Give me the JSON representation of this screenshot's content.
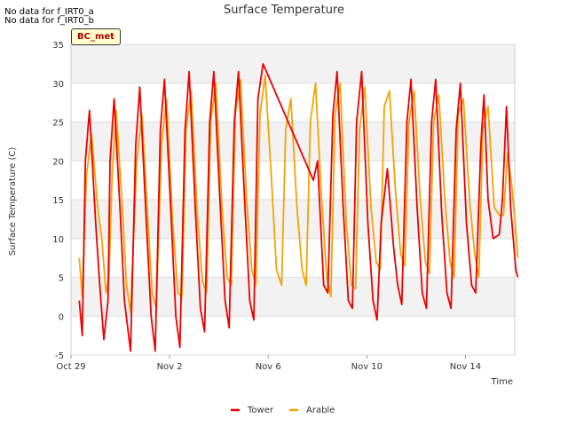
{
  "notes": [
    "No data for f_IRT0_a",
    "No data for f_IRT0_b"
  ],
  "badge": "BC_met",
  "chart_data": {
    "type": "line",
    "title": "Surface Temperature",
    "xlabel": "Time",
    "ylabel": "Surface Temperature (C)",
    "ylim": [
      -5,
      35
    ],
    "xlim": [
      "2023-10-29",
      "2023-11-16"
    ],
    "yticks": [
      -5,
      0,
      5,
      10,
      15,
      20,
      25,
      30,
      35
    ],
    "xticks": [
      {
        "label": "Oct 29",
        "date": "2023-10-29"
      },
      {
        "label": "Nov 2",
        "date": "2023-11-02"
      },
      {
        "label": "Nov 6",
        "date": "2023-11-06"
      },
      {
        "label": "Nov 10",
        "date": "2023-11-10"
      },
      {
        "label": "Nov 14",
        "date": "2023-11-14"
      }
    ],
    "grid": true,
    "legend_position": "bottom",
    "series": [
      {
        "name": "Tower",
        "color": "#ee0000",
        "points": [
          [
            "2023-10-29 08:00",
            2.0
          ],
          [
            "2023-10-29 11:00",
            -2.5
          ],
          [
            "2023-10-29 14:00",
            20.0
          ],
          [
            "2023-10-29 18:00",
            26.5
          ],
          [
            "2023-10-30 00:00",
            12.0
          ],
          [
            "2023-10-30 04:00",
            4.0
          ],
          [
            "2023-10-30 08:00",
            -3.0
          ],
          [
            "2023-10-30 12:00",
            2.0
          ],
          [
            "2023-10-30 14:00",
            20.0
          ],
          [
            "2023-10-30 18:00",
            28.0
          ],
          [
            "2023-10-31 00:00",
            13.0
          ],
          [
            "2023-10-31 04:00",
            2.0
          ],
          [
            "2023-10-31 10:00",
            -4.5
          ],
          [
            "2023-10-31 15:00",
            22.0
          ],
          [
            "2023-10-31 19:00",
            29.5
          ],
          [
            "2023-11-01 01:00",
            13.0
          ],
          [
            "2023-11-01 06:00",
            0.0
          ],
          [
            "2023-11-01 10:00",
            -4.5
          ],
          [
            "2023-11-01 15:00",
            24.0
          ],
          [
            "2023-11-01 19:00",
            30.5
          ],
          [
            "2023-11-02 01:00",
            14.0
          ],
          [
            "2023-11-02 06:00",
            0.0
          ],
          [
            "2023-11-02 10:00",
            -4.0
          ],
          [
            "2023-11-02 15:00",
            24.0
          ],
          [
            "2023-11-02 19:00",
            31.5
          ],
          [
            "2023-11-03 01:00",
            14.0
          ],
          [
            "2023-11-03 06:00",
            1.0
          ],
          [
            "2023-11-03 10:00",
            -2.0
          ],
          [
            "2023-11-03 15:00",
            25.0
          ],
          [
            "2023-11-03 19:00",
            31.5
          ],
          [
            "2023-11-04 01:00",
            15.0
          ],
          [
            "2023-11-04 06:00",
            2.0
          ],
          [
            "2023-11-04 10:00",
            -1.5
          ],
          [
            "2023-11-04 15:00",
            25.0
          ],
          [
            "2023-11-04 19:00",
            31.5
          ],
          [
            "2023-11-05 01:00",
            15.0
          ],
          [
            "2023-11-05 06:00",
            2.0
          ],
          [
            "2023-11-05 10:00",
            -0.5
          ],
          [
            "2023-11-05 14:00",
            28.0
          ],
          [
            "2023-11-05 19:00",
            32.5
          ],
          [
            "2023-11-07 20:00",
            17.5
          ],
          [
            "2023-11-08 00:00",
            20.0
          ],
          [
            "2023-11-08 06:00",
            4.0
          ],
          [
            "2023-11-08 10:00",
            3.0
          ],
          [
            "2023-11-08 15:00",
            26.0
          ],
          [
            "2023-11-08 19:00",
            31.5
          ],
          [
            "2023-11-09 01:00",
            14.0
          ],
          [
            "2023-11-09 06:00",
            2.0
          ],
          [
            "2023-11-09 10:00",
            1.0
          ],
          [
            "2023-11-09 14:00",
            25.0
          ],
          [
            "2023-11-09 19:00",
            31.5
          ],
          [
            "2023-11-10 01:00",
            12.0
          ],
          [
            "2023-11-10 06:00",
            2.0
          ],
          [
            "2023-11-10 10:00",
            -0.5
          ],
          [
            "2023-11-10 14:00",
            12.0
          ],
          [
            "2023-11-10 20:00",
            19.0
          ],
          [
            "2023-11-11 02:00",
            9.0
          ],
          [
            "2023-11-11 06:00",
            4.0
          ],
          [
            "2023-11-11 10:00",
            1.5
          ],
          [
            "2023-11-11 15:00",
            25.0
          ],
          [
            "2023-11-11 19:00",
            30.5
          ],
          [
            "2023-11-12 01:00",
            14.0
          ],
          [
            "2023-11-12 06:00",
            3.0
          ],
          [
            "2023-11-12 10:00",
            1.0
          ],
          [
            "2023-11-12 15:00",
            25.0
          ],
          [
            "2023-11-12 19:00",
            30.5
          ],
          [
            "2023-11-13 01:00",
            13.0
          ],
          [
            "2023-11-13 06:00",
            3.0
          ],
          [
            "2023-11-13 10:00",
            1.0
          ],
          [
            "2023-11-13 15:00",
            24.0
          ],
          [
            "2023-11-13 19:00",
            30.0
          ],
          [
            "2023-11-14 01:00",
            12.0
          ],
          [
            "2023-11-14 06:00",
            4.0
          ],
          [
            "2023-11-14 10:00",
            3.0
          ],
          [
            "2023-11-14 15:00",
            22.0
          ],
          [
            "2023-11-14 18:00",
            28.5
          ],
          [
            "2023-11-14 22:00",
            15.0
          ],
          [
            "2023-11-15 03:00",
            10.0
          ],
          [
            "2023-11-15 09:00",
            10.5
          ],
          [
            "2023-11-15 12:00",
            15.0
          ],
          [
            "2023-11-15 16:00",
            27.0
          ],
          [
            "2023-11-15 20:00",
            14.0
          ],
          [
            "2023-11-16 01:00",
            6.0
          ],
          [
            "2023-11-16 03:00",
            5.0
          ]
        ]
      },
      {
        "name": "Arable",
        "color": "#f5a300",
        "points": [
          [
            "2023-10-29 08:00",
            7.5
          ],
          [
            "2023-10-29 11:00",
            2.5
          ],
          [
            "2023-10-29 15:00",
            18.0
          ],
          [
            "2023-10-29 20:00",
            23.5
          ],
          [
            "2023-10-30 02:00",
            14.0
          ],
          [
            "2023-10-30 06:00",
            10.0
          ],
          [
            "2023-10-30 10:00",
            3.0
          ],
          [
            "2023-10-30 13:00",
            5.0
          ],
          [
            "2023-10-30 16:00",
            18.0
          ],
          [
            "2023-10-30 20:00",
            26.5
          ],
          [
            "2023-10-31 02:00",
            14.0
          ],
          [
            "2023-10-31 06:00",
            4.0
          ],
          [
            "2023-10-31 10:00",
            0.5
          ],
          [
            "2023-10-31 16:00",
            20.0
          ],
          [
            "2023-10-31 21:00",
            26.0
          ],
          [
            "2023-11-01 03:00",
            12.0
          ],
          [
            "2023-11-01 07:00",
            3.0
          ],
          [
            "2023-11-01 11:00",
            1.0
          ],
          [
            "2023-11-01 16:00",
            22.0
          ],
          [
            "2023-11-01 21:00",
            28.0
          ],
          [
            "2023-11-02 03:00",
            12.0
          ],
          [
            "2023-11-02 08:00",
            3.0
          ],
          [
            "2023-11-02 12:00",
            2.5
          ],
          [
            "2023-11-02 16:00",
            24.0
          ],
          [
            "2023-11-02 21:00",
            29.0
          ],
          [
            "2023-11-03 03:00",
            13.0
          ],
          [
            "2023-11-03 08:00",
            4.5
          ],
          [
            "2023-11-03 12:00",
            3.0
          ],
          [
            "2023-11-03 16:00",
            25.0
          ],
          [
            "2023-11-03 21:00",
            30.0
          ],
          [
            "2023-11-04 03:00",
            14.0
          ],
          [
            "2023-11-04 08:00",
            5.0
          ],
          [
            "2023-11-04 12:00",
            4.0
          ],
          [
            "2023-11-04 16:00",
            26.0
          ],
          [
            "2023-11-04 21:00",
            30.5
          ],
          [
            "2023-11-05 03:00",
            15.0
          ],
          [
            "2023-11-05 08:00",
            6.0
          ],
          [
            "2023-11-05 12:00",
            4.0
          ],
          [
            "2023-11-05 16:00",
            26.0
          ],
          [
            "2023-11-05 21:00",
            31.0
          ],
          [
            "2023-11-06 03:00",
            18.0
          ],
          [
            "2023-11-06 08:00",
            6.0
          ],
          [
            "2023-11-06 13:00",
            4.0
          ],
          [
            "2023-11-06 17:00",
            24.0
          ],
          [
            "2023-11-06 22:00",
            28.0
          ],
          [
            "2023-11-07 04:00",
            14.0
          ],
          [
            "2023-11-07 09:00",
            6.0
          ],
          [
            "2023-11-07 13:00",
            4.0
          ],
          [
            "2023-11-07 17:00",
            25.0
          ],
          [
            "2023-11-07 22:00",
            30.0
          ],
          [
            "2023-11-08 04:00",
            15.0
          ],
          [
            "2023-11-08 09:00",
            5.0
          ],
          [
            "2023-11-08 13:00",
            2.5
          ],
          [
            "2023-11-08 17:00",
            26.0
          ],
          [
            "2023-11-08 22:00",
            30.0
          ],
          [
            "2023-11-09 04:00",
            12.0
          ],
          [
            "2023-11-09 09:00",
            4.0
          ],
          [
            "2023-11-09 13:00",
            3.5
          ],
          [
            "2023-11-09 17:00",
            24.0
          ],
          [
            "2023-11-09 22:00",
            29.5
          ],
          [
            "2023-11-10 04:00",
            14.0
          ],
          [
            "2023-11-10 09:00",
            7.0
          ],
          [
            "2023-11-10 13:00",
            6.0
          ],
          [
            "2023-11-10 17:00",
            27.0
          ],
          [
            "2023-11-10 22:00",
            29.0
          ],
          [
            "2023-11-11 04:00",
            16.0
          ],
          [
            "2023-11-11 09:00",
            8.0
          ],
          [
            "2023-11-11 13:00",
            6.5
          ],
          [
            "2023-11-11 17:00",
            25.0
          ],
          [
            "2023-11-11 22:00",
            29.0
          ],
          [
            "2023-11-12 04:00",
            15.0
          ],
          [
            "2023-11-12 09:00",
            7.0
          ],
          [
            "2023-11-12 13:00",
            5.5
          ],
          [
            "2023-11-12 17:00",
            25.0
          ],
          [
            "2023-11-12 22:00",
            28.5
          ],
          [
            "2023-11-13 04:00",
            15.0
          ],
          [
            "2023-11-13 09:00",
            7.0
          ],
          [
            "2023-11-13 13:00",
            5.0
          ],
          [
            "2023-11-13 17:00",
            26.0
          ],
          [
            "2023-11-13 22:00",
            28.0
          ],
          [
            "2023-11-14 04:00",
            15.0
          ],
          [
            "2023-11-14 09:00",
            8.0
          ],
          [
            "2023-11-14 13:00",
            5.0
          ],
          [
            "2023-11-14 17:00",
            24.0
          ],
          [
            "2023-11-14 22:00",
            27.0
          ],
          [
            "2023-11-15 04:00",
            14.0
          ],
          [
            "2023-11-15 09:00",
            13.0
          ],
          [
            "2023-11-15 13:00",
            13.0
          ],
          [
            "2023-11-15 17:00",
            21.0
          ],
          [
            "2023-11-15 21:00",
            17.0
          ],
          [
            "2023-11-16 01:00",
            11.0
          ],
          [
            "2023-11-16 03:00",
            7.5
          ]
        ]
      }
    ]
  }
}
